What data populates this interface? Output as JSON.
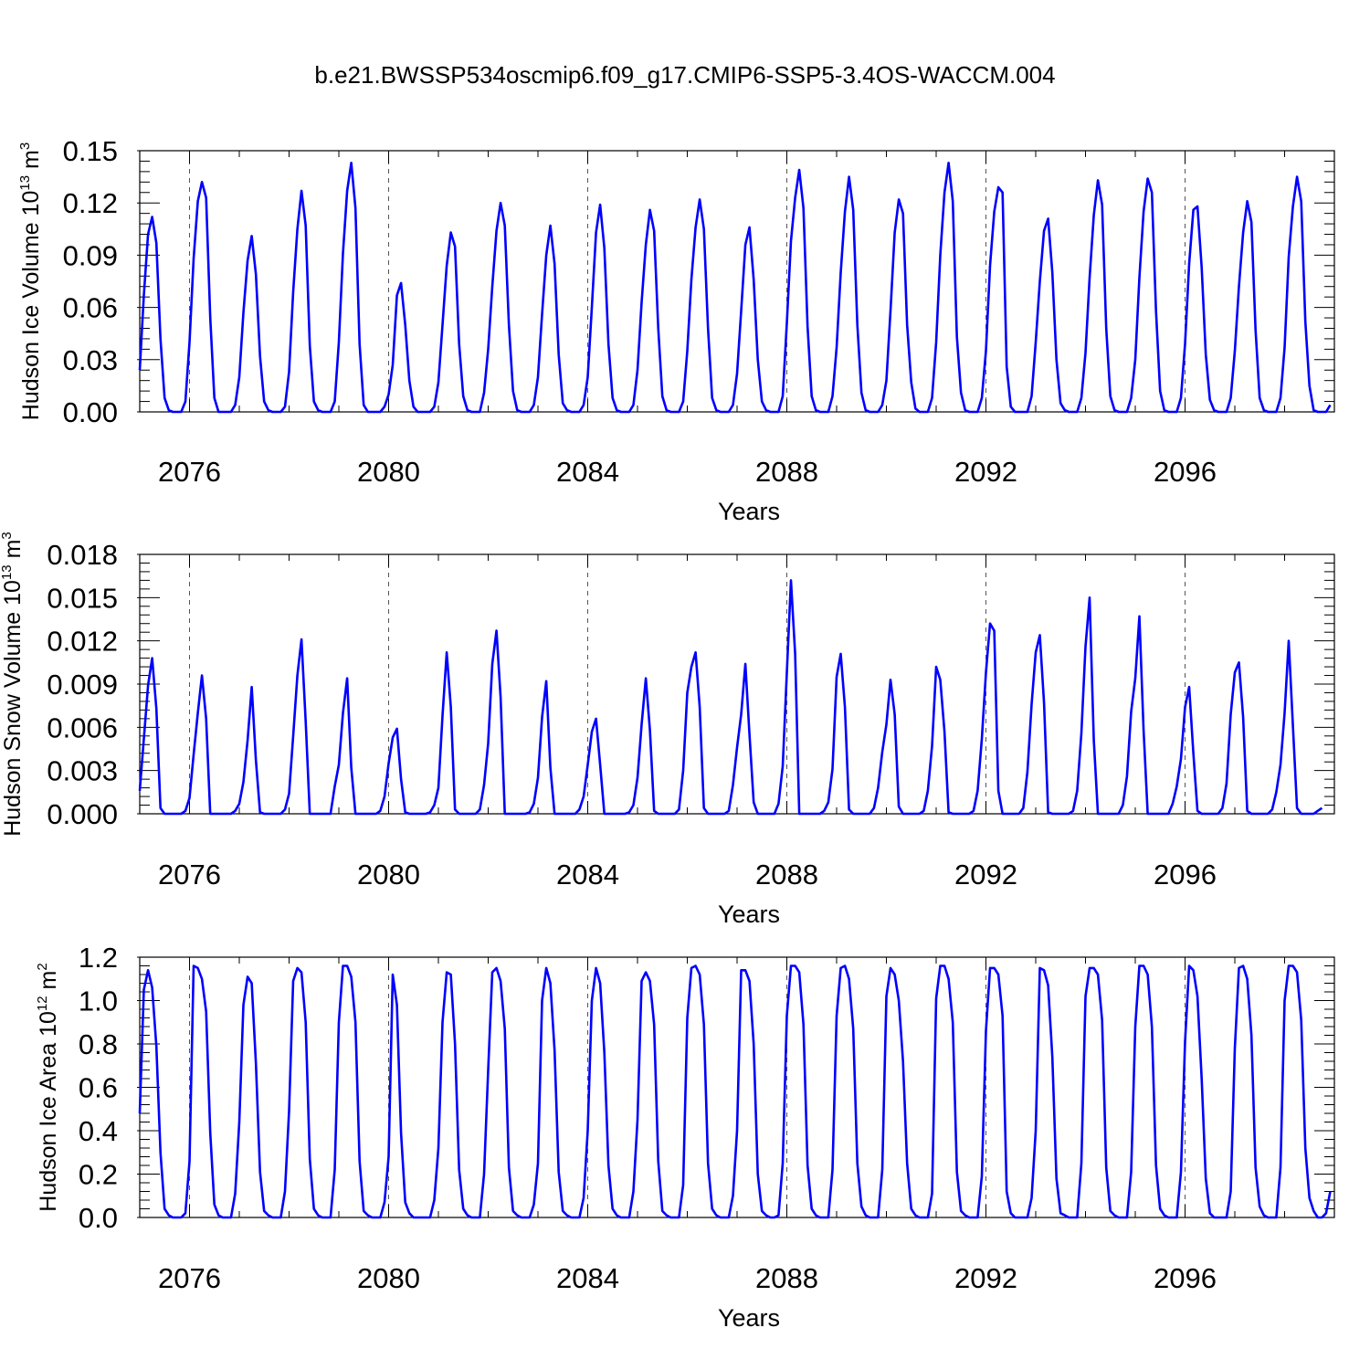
{
  "figure_title": "b.e21.BWSSP534oscmip6.f09_g17.CMIP6-SSP5-3.4OS-WACCM.004",
  "colors": {
    "series": "#0000ff",
    "axis": "#000000",
    "refline": "#555555"
  },
  "chart_data": [
    {
      "type": "line",
      "title": "b.e21.BWSSP534oscmip6.f09_g17.CMIP6-SSP5-3.4OS-WACCM.004",
      "xlabel": "Years",
      "ylabel": {
        "text": "Hudson Ice Volume 10",
        "exp": "13",
        "unit": " m",
        "unit_exp": "3"
      },
      "xlim": [
        2075,
        2099
      ],
      "xticks": [
        "2076",
        "2080",
        "2084",
        "2088",
        "2092",
        "2096"
      ],
      "ylim": [
        0,
        0.15
      ],
      "yticks": [
        "0.00",
        "0.03",
        "0.06",
        "0.09",
        "0.12",
        "0.15"
      ],
      "ref_lines_x": [
        2076,
        2080,
        2084,
        2088,
        2092,
        2096
      ],
      "x_start": 2075.0,
      "x_step": 0.0833333,
      "series": [
        {
          "name": "Hudson Ice Volume",
          "values": [
            0.024,
            0.067,
            0.102,
            0.112,
            0.097,
            0.042,
            0.008,
            0.001,
            0.0,
            0.0,
            0.0,
            0.006,
            0.04,
            0.088,
            0.121,
            0.132,
            0.123,
            0.054,
            0.008,
            0.0,
            0.0,
            0.0,
            0.0,
            0.004,
            0.02,
            0.057,
            0.087,
            0.101,
            0.079,
            0.032,
            0.006,
            0.001,
            0.0,
            0.0,
            0.0,
            0.003,
            0.023,
            0.069,
            0.105,
            0.127,
            0.107,
            0.038,
            0.006,
            0.001,
            0.0,
            0.0,
            0.0,
            0.006,
            0.04,
            0.091,
            0.127,
            0.143,
            0.117,
            0.039,
            0.004,
            0.0,
            0.0,
            0.0,
            0.0,
            0.003,
            0.01,
            0.027,
            0.067,
            0.074,
            0.05,
            0.018,
            0.003,
            0.0,
            0.0,
            0.0,
            0.0,
            0.003,
            0.017,
            0.05,
            0.084,
            0.103,
            0.095,
            0.039,
            0.009,
            0.001,
            0.0,
            0.0,
            0.0,
            0.011,
            0.036,
            0.072,
            0.104,
            0.12,
            0.107,
            0.05,
            0.012,
            0.001,
            0.0,
            0.0,
            0.0,
            0.004,
            0.02,
            0.056,
            0.09,
            0.107,
            0.085,
            0.033,
            0.005,
            0.001,
            0.0,
            0.0,
            0.0,
            0.004,
            0.02,
            0.06,
            0.103,
            0.119,
            0.094,
            0.039,
            0.008,
            0.001,
            0.0,
            0.0,
            0.0,
            0.004,
            0.024,
            0.063,
            0.096,
            0.116,
            0.104,
            0.048,
            0.009,
            0.001,
            0.0,
            0.0,
            0.0,
            0.006,
            0.035,
            0.076,
            0.106,
            0.122,
            0.105,
            0.048,
            0.008,
            0.001,
            0.0,
            0.0,
            0.0,
            0.004,
            0.022,
            0.058,
            0.096,
            0.106,
            0.076,
            0.03,
            0.006,
            0.001,
            0.0,
            0.0,
            0.0,
            0.009,
            0.051,
            0.098,
            0.123,
            0.139,
            0.117,
            0.049,
            0.009,
            0.001,
            0.0,
            0.0,
            0.0,
            0.009,
            0.037,
            0.08,
            0.115,
            0.135,
            0.116,
            0.05,
            0.011,
            0.001,
            0.0,
            0.0,
            0.0,
            0.004,
            0.018,
            0.058,
            0.103,
            0.122,
            0.114,
            0.05,
            0.017,
            0.002,
            0.0,
            0.0,
            0.0,
            0.008,
            0.04,
            0.09,
            0.126,
            0.143,
            0.121,
            0.043,
            0.011,
            0.001,
            0.0,
            0.0,
            0.0,
            0.008,
            0.035,
            0.084,
            0.115,
            0.129,
            0.126,
            0.026,
            0.003,
            0.0,
            0.0,
            0.0,
            0.0,
            0.009,
            0.04,
            0.075,
            0.104,
            0.111,
            0.08,
            0.03,
            0.005,
            0.001,
            0.0,
            0.0,
            0.0,
            0.008,
            0.034,
            0.077,
            0.113,
            0.133,
            0.119,
            0.048,
            0.009,
            0.001,
            0.0,
            0.0,
            0.0,
            0.008,
            0.03,
            0.077,
            0.115,
            0.134,
            0.126,
            0.058,
            0.012,
            0.001,
            0.0,
            0.0,
            0.0,
            0.008,
            0.039,
            0.085,
            0.116,
            0.118,
            0.083,
            0.033,
            0.007,
            0.001,
            0.0,
            0.0,
            0.0,
            0.008,
            0.035,
            0.072,
            0.103,
            0.121,
            0.109,
            0.047,
            0.008,
            0.001,
            0.0,
            0.0,
            0.0,
            0.008,
            0.037,
            0.089,
            0.118,
            0.135,
            0.121,
            0.052,
            0.015,
            0.001,
            0.0,
            0.0,
            0.0,
            0.004
          ]
        }
      ]
    },
    {
      "type": "line",
      "xlabel": "Years",
      "ylabel": {
        "text": "Hudson Snow Volume 10",
        "exp": "13",
        "unit": " m",
        "unit_exp": "3"
      },
      "xlim": [
        2075,
        2099
      ],
      "xticks": [
        "2076",
        "2080",
        "2084",
        "2088",
        "2092",
        "2096"
      ],
      "ylim": [
        0,
        0.018
      ],
      "yticks": [
        "0.000",
        "0.003",
        "0.006",
        "0.009",
        "0.012",
        "0.015",
        "0.018"
      ],
      "ref_lines_x": [
        2076,
        2080,
        2084,
        2088,
        2092,
        2096
      ],
      "x_start": 2075.0,
      "x_step": 0.0833333,
      "series": [
        {
          "name": "Hudson Snow Volume",
          "values": [
            0.0016,
            0.0052,
            0.0089,
            0.0108,
            0.0073,
            0.0004,
            0.0,
            0.0,
            0.0,
            0.0,
            0.0,
            0.0002,
            0.0011,
            0.0041,
            0.007,
            0.0096,
            0.0066,
            0.0,
            0.0,
            0.0,
            0.0,
            0.0,
            0.0,
            0.0002,
            0.0007,
            0.0022,
            0.0051,
            0.0088,
            0.0037,
            0.0001,
            0.0,
            0.0,
            0.0,
            0.0,
            0.0,
            0.0003,
            0.0014,
            0.0054,
            0.0096,
            0.0121,
            0.0064,
            0.0,
            0.0,
            0.0,
            0.0,
            0.0,
            0.0,
            0.0019,
            0.0034,
            0.007,
            0.0094,
            0.0032,
            0.0,
            0.0,
            0.0,
            0.0,
            0.0,
            0.0,
            0.0002,
            0.0012,
            0.0035,
            0.0053,
            0.0059,
            0.0024,
            0.0001,
            0.0,
            0.0,
            0.0,
            0.0,
            0.0,
            0.0001,
            0.0006,
            0.0018,
            0.0068,
            0.0112,
            0.0074,
            0.0003,
            0.0,
            0.0,
            0.0,
            0.0,
            0.0,
            0.0003,
            0.002,
            0.0049,
            0.0104,
            0.0127,
            0.0081,
            0.0,
            0.0,
            0.0,
            0.0,
            0.0,
            0.0,
            0.0001,
            0.0007,
            0.0025,
            0.0067,
            0.0092,
            0.0032,
            0.0,
            0.0,
            0.0,
            0.0,
            0.0,
            0.0,
            0.0003,
            0.0012,
            0.0034,
            0.0057,
            0.0066,
            0.0034,
            0.0,
            0.0,
            0.0,
            0.0,
            0.0,
            0.0,
            0.0001,
            0.0006,
            0.0025,
            0.0062,
            0.0094,
            0.0058,
            0.0002,
            0.0,
            0.0,
            0.0,
            0.0,
            0.0,
            0.0003,
            0.003,
            0.0084,
            0.0102,
            0.0112,
            0.0074,
            0.0004,
            0.0,
            0.0,
            0.0,
            0.0,
            0.0,
            0.0002,
            0.002,
            0.0046,
            0.0069,
            0.0104,
            0.0055,
            0.0008,
            0.0,
            0.0,
            0.0,
            0.0,
            0.0,
            0.0007,
            0.0033,
            0.0098,
            0.0162,
            0.0111,
            0.0,
            0.0,
            0.0,
            0.0,
            0.0,
            0.0,
            0.0002,
            0.0008,
            0.0031,
            0.0095,
            0.0111,
            0.0074,
            0.0003,
            0.0,
            0.0,
            0.0,
            0.0,
            0.0,
            0.0004,
            0.0018,
            0.0043,
            0.0062,
            0.0093,
            0.0069,
            0.0005,
            0.0,
            0.0,
            0.0,
            0.0,
            0.0,
            0.0002,
            0.0016,
            0.0047,
            0.0102,
            0.0093,
            0.0057,
            0.0001,
            0.0,
            0.0,
            0.0,
            0.0,
            0.0,
            0.0002,
            0.0016,
            0.0052,
            0.0098,
            0.0132,
            0.0127,
            0.0016,
            0.0,
            0.0,
            0.0,
            0.0,
            0.0,
            0.0004,
            0.0029,
            0.0076,
            0.0112,
            0.0124,
            0.0077,
            0.0001,
            0.0,
            0.0,
            0.0,
            0.0,
            0.0,
            0.0002,
            0.0016,
            0.0056,
            0.0116,
            0.015,
            0.0051,
            0.0,
            0.0,
            0.0,
            0.0,
            0.0,
            0.0,
            0.0006,
            0.0026,
            0.0071,
            0.0094,
            0.0137,
            0.0058,
            0.0,
            0.0,
            0.0,
            0.0,
            0.0,
            0.0,
            0.0007,
            0.0019,
            0.0038,
            0.0074,
            0.0088,
            0.0042,
            0.0002,
            0.0,
            0.0,
            0.0,
            0.0,
            0.0,
            0.0004,
            0.0021,
            0.0069,
            0.0098,
            0.0105,
            0.0067,
            0.0002,
            0.0,
            0.0,
            0.0,
            0.0,
            0.0,
            0.0003,
            0.0015,
            0.0034,
            0.007,
            0.012,
            0.0061,
            0.0004,
            0.0,
            0.0,
            0.0,
            0.0,
            0.0002,
            0.0004
          ]
        }
      ]
    },
    {
      "type": "line",
      "xlabel": "Years",
      "ylabel": {
        "text": "Hudson Ice Area 10",
        "exp": "12",
        "unit": " m",
        "unit_exp": "2"
      },
      "xlim": [
        2075,
        2099
      ],
      "xticks": [
        "2076",
        "2080",
        "2084",
        "2088",
        "2092",
        "2096"
      ],
      "ylim": [
        0,
        1.2
      ],
      "yticks": [
        "0.0",
        "0.2",
        "0.4",
        "0.6",
        "0.8",
        "1.0",
        "1.2"
      ],
      "ref_lines_x": [
        2076,
        2080,
        2084,
        2088,
        2092,
        2096
      ],
      "x_start": 2075.0,
      "x_step": 0.0833333,
      "series": [
        {
          "name": "Hudson Ice Area",
          "values": [
            0.48,
            1.05,
            1.14,
            1.06,
            0.79,
            0.3,
            0.04,
            0.01,
            0.0,
            0.0,
            0.0,
            0.02,
            0.26,
            1.16,
            1.15,
            1.1,
            0.95,
            0.39,
            0.06,
            0.01,
            0.0,
            0.0,
            0.0,
            0.11,
            0.44,
            0.98,
            1.11,
            1.08,
            0.71,
            0.21,
            0.03,
            0.01,
            0.0,
            0.0,
            0.0,
            0.12,
            0.49,
            1.09,
            1.15,
            1.13,
            0.9,
            0.27,
            0.04,
            0.01,
            0.0,
            0.0,
            0.0,
            0.22,
            0.9,
            1.16,
            1.16,
            1.11,
            0.9,
            0.26,
            0.03,
            0.01,
            0.0,
            0.0,
            0.0,
            0.07,
            0.28,
            1.12,
            0.98,
            0.39,
            0.07,
            0.02,
            0.0,
            0.0,
            0.0,
            0.0,
            0.0,
            0.08,
            0.32,
            0.9,
            1.13,
            1.12,
            0.8,
            0.22,
            0.04,
            0.01,
            0.0,
            0.0,
            0.0,
            0.2,
            0.68,
            1.13,
            1.15,
            1.09,
            0.87,
            0.23,
            0.03,
            0.01,
            0.0,
            0.0,
            0.0,
            0.06,
            0.25,
            1.0,
            1.15,
            1.08,
            0.77,
            0.21,
            0.03,
            0.01,
            0.0,
            0.0,
            0.0,
            0.09,
            0.4,
            1.0,
            1.15,
            1.08,
            0.76,
            0.24,
            0.04,
            0.01,
            0.0,
            0.0,
            0.0,
            0.12,
            0.45,
            1.09,
            1.13,
            1.09,
            0.89,
            0.26,
            0.03,
            0.01,
            0.0,
            0.0,
            0.0,
            0.15,
            0.92,
            1.15,
            1.16,
            1.12,
            0.89,
            0.25,
            0.04,
            0.01,
            0.0,
            0.0,
            0.0,
            0.1,
            0.4,
            1.14,
            1.14,
            1.09,
            0.8,
            0.2,
            0.03,
            0.01,
            0.0,
            0.0,
            0.01,
            0.25,
            0.93,
            1.16,
            1.16,
            1.13,
            0.89,
            0.24,
            0.04,
            0.01,
            0.0,
            0.0,
            0.0,
            0.22,
            0.93,
            1.15,
            1.16,
            1.1,
            0.87,
            0.25,
            0.05,
            0.01,
            0.0,
            0.0,
            0.0,
            0.22,
            1.02,
            1.15,
            1.12,
            1.0,
            0.72,
            0.25,
            0.04,
            0.01,
            0.0,
            0.0,
            0.0,
            0.11,
            1.01,
            1.16,
            1.16,
            1.1,
            0.9,
            0.21,
            0.03,
            0.01,
            0.0,
            0.0,
            0.0,
            0.19,
            0.86,
            1.15,
            1.15,
            1.12,
            0.93,
            0.12,
            0.02,
            0.0,
            0.0,
            0.0,
            0.0,
            0.09,
            0.4,
            1.15,
            1.14,
            1.07,
            0.74,
            0.18,
            0.02,
            0.01,
            0.0,
            0.0,
            0.0,
            0.25,
            1.02,
            1.15,
            1.15,
            1.12,
            0.91,
            0.23,
            0.03,
            0.01,
            0.0,
            0.0,
            0.0,
            0.21,
            0.88,
            1.16,
            1.16,
            1.12,
            0.88,
            0.24,
            0.04,
            0.01,
            0.0,
            0.0,
            0.0,
            0.21,
            0.81,
            1.16,
            1.14,
            1.02,
            0.64,
            0.18,
            0.02,
            0.0,
            0.0,
            0.0,
            0.0,
            0.12,
            0.78,
            1.15,
            1.16,
            1.1,
            0.84,
            0.23,
            0.05,
            0.01,
            0.0,
            0.0,
            0.0,
            0.23,
            1.0,
            1.16,
            1.16,
            1.13,
            0.91,
            0.32,
            0.09,
            0.03,
            0.0,
            0.0,
            0.02,
            0.12
          ]
        }
      ]
    }
  ]
}
